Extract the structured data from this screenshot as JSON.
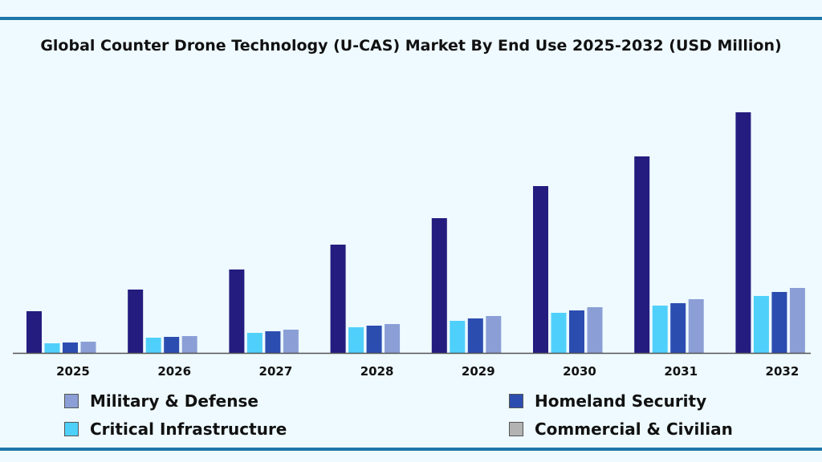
{
  "chart_data": {
    "type": "bar",
    "title": "Global Counter Drone Technology (U-CAS) Market By End Use 2025-2032 (USD Million)",
    "categories": [
      "2025",
      "2026",
      "2027",
      "2028",
      "2029",
      "2030",
      "2031",
      "2032"
    ],
    "series": [
      {
        "color": "#241c7e",
        "values": [
          52,
          79,
          104,
          135,
          168,
          208,
          245,
          300
        ]
      },
      {
        "color": "#4fd0fb",
        "values": [
          12,
          19,
          25,
          32,
          40,
          50,
          59,
          71
        ]
      },
      {
        "color": "#2c4db0",
        "values": [
          13,
          20,
          27,
          34,
          43,
          53,
          62,
          76
        ]
      },
      {
        "color": "#8b9fd6",
        "values": [
          14,
          21,
          29,
          36,
          46,
          57,
          67,
          81
        ]
      }
    ],
    "y_axis_shown": false,
    "grid": false,
    "legend_position": "bottom",
    "legend": [
      {
        "label": "Military & Defense",
        "color": "#8b9fd6"
      },
      {
        "label": "Homeland Security",
        "color": "#2c4db0"
      },
      {
        "label": "Critical Infrastructure",
        "color": "#4fd0fb"
      },
      {
        "label": "Commercial & Civilian",
        "color": "#b3b3b3"
      }
    ]
  }
}
